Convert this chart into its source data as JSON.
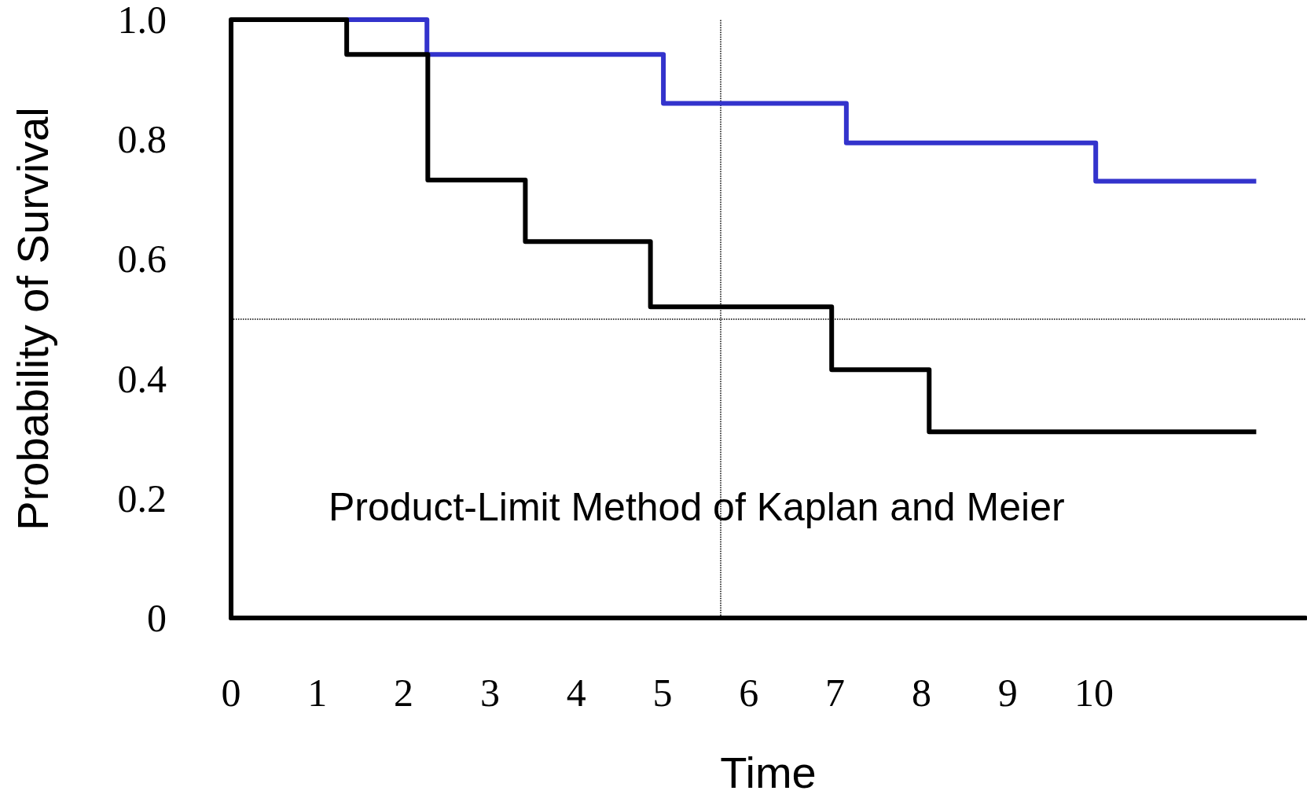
{
  "chart_data": {
    "type": "step",
    "xlabel": "Time",
    "ylabel": "Probability of Survival",
    "annotations": [
      "Product-Limit Method of Kaplan and Meier"
    ],
    "series": [
      {
        "color": "#3333cc",
        "x": [
          1.34,
          2.27,
          5.01,
          7.13,
          10.02,
          11.88
        ],
        "values": [
          1,
          0.942,
          0.86,
          0.794,
          0.73,
          0.73
        ]
      },
      {
        "color": "#000000",
        "x": [
          0,
          1.34,
          2.28,
          3.41,
          4.86,
          6.96,
          8.09,
          11.88
        ],
        "values": [
          1,
          0.942,
          0.732,
          0.629,
          0.52,
          0.415,
          0.311,
          0.311
        ]
      }
    ],
    "xlim": [
      0,
      12.45
    ],
    "xticks": [
      0,
      1,
      2,
      3,
      4,
      5,
      6,
      7,
      8,
      9,
      10
    ],
    "ylim": [
      0,
      1
    ],
    "yticks": [
      0,
      {
        "value": 0.2,
        "label": "0.2"
      },
      {
        "value": 0.4,
        "label": "0.4"
      },
      {
        "value": 0.6,
        "label": "0.6"
      },
      {
        "value": 0.8,
        "label": "0.8"
      },
      {
        "value": 1,
        "label": "1.0"
      }
    ],
    "ref_lines": [
      {
        "axis": "y",
        "value": 0.5,
        "line_style": "dotted",
        "color": "#000000"
      },
      {
        "axis": "x",
        "value": 5.67,
        "line_style": "dotted",
        "color": "#000000"
      }
    ],
    "grid": false,
    "marker": "none",
    "line_style": "solid"
  }
}
